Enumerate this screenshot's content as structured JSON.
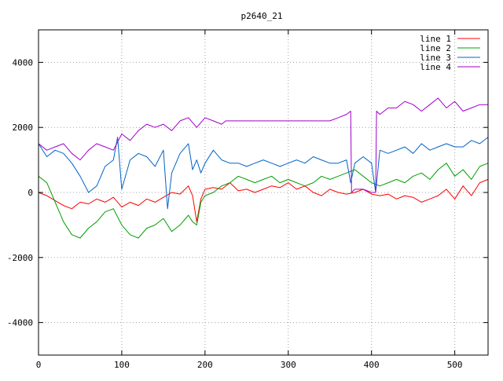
{
  "chart_data": {
    "type": "line",
    "title": "p2640_21",
    "xlabel": "",
    "ylabel": "",
    "xlim": [
      0,
      540
    ],
    "ylim": [
      -5000,
      5000
    ],
    "xticks": [
      0,
      100,
      200,
      300,
      400,
      500
    ],
    "yticks": [
      -4000,
      -2000,
      0,
      2000,
      4000
    ],
    "xtick_labels": [
      "0",
      "100",
      "200",
      "300",
      "400",
      "500"
    ],
    "ytick_labels": [
      "-4000",
      "-2000",
      "0",
      "2000",
      "4000"
    ],
    "grid": true,
    "legend_position": "top-right",
    "series": [
      {
        "name": "line 1",
        "color": "#ff0000",
        "x": [
          0,
          10,
          20,
          30,
          40,
          50,
          60,
          70,
          80,
          90,
          100,
          110,
          120,
          130,
          140,
          150,
          160,
          170,
          180,
          185,
          190,
          195,
          200,
          210,
          220,
          230,
          240,
          250,
          260,
          270,
          280,
          290,
          300,
          310,
          320,
          330,
          340,
          350,
          360,
          370,
          380,
          390,
          400,
          410,
          420,
          430,
          440,
          450,
          460,
          470,
          480,
          490,
          500,
          510,
          520,
          530,
          540
        ],
        "y": [
          0,
          -100,
          -250,
          -400,
          -500,
          -300,
          -350,
          -200,
          -300,
          -150,
          -450,
          -300,
          -400,
          -200,
          -300,
          -150,
          0,
          -50,
          200,
          -100,
          -900,
          -200,
          100,
          150,
          100,
          300,
          50,
          100,
          0,
          100,
          200,
          150,
          300,
          100,
          200,
          0,
          -100,
          100,
          0,
          -50,
          0,
          100,
          -50,
          -100,
          -50,
          -200,
          -100,
          -150,
          -300,
          -200,
          -100,
          100,
          -200,
          200,
          -100,
          300,
          400
        ]
      },
      {
        "name": "line 2",
        "color": "#00a000",
        "x": [
          0,
          10,
          20,
          30,
          40,
          50,
          60,
          70,
          80,
          90,
          100,
          110,
          120,
          130,
          140,
          150,
          160,
          170,
          180,
          185,
          190,
          195,
          200,
          210,
          220,
          230,
          240,
          250,
          260,
          270,
          280,
          290,
          300,
          310,
          320,
          330,
          340,
          350,
          360,
          370,
          380,
          390,
          400,
          410,
          420,
          430,
          440,
          450,
          460,
          470,
          480,
          490,
          500,
          510,
          520,
          530,
          540
        ],
        "y": [
          500,
          300,
          -300,
          -900,
          -1300,
          -1400,
          -1100,
          -900,
          -600,
          -500,
          -1000,
          -1300,
          -1400,
          -1100,
          -1000,
          -800,
          -1200,
          -1000,
          -700,
          -900,
          -1000,
          -300,
          -100,
          0,
          200,
          300,
          500,
          400,
          300,
          400,
          500,
          300,
          400,
          300,
          200,
          300,
          500,
          400,
          500,
          600,
          700,
          500,
          300,
          200,
          300,
          400,
          300,
          500,
          600,
          400,
          700,
          900,
          500,
          700,
          400,
          800,
          900
        ]
      },
      {
        "name": "line 3",
        "color": "#0064c8",
        "x": [
          0,
          10,
          20,
          30,
          40,
          50,
          60,
          70,
          80,
          90,
          95,
          100,
          110,
          120,
          130,
          140,
          150,
          155,
          160,
          170,
          180,
          185,
          190,
          195,
          200,
          210,
          220,
          230,
          240,
          250,
          260,
          270,
          280,
          290,
          300,
          310,
          320,
          330,
          340,
          350,
          360,
          370,
          375,
          380,
          390,
          400,
          405,
          410,
          420,
          430,
          440,
          450,
          460,
          470,
          480,
          490,
          500,
          510,
          520,
          530,
          540
        ],
        "y": [
          1500,
          1100,
          1300,
          1200,
          900,
          500,
          0,
          200,
          800,
          1000,
          1700,
          100,
          1000,
          1200,
          1100,
          800,
          1300,
          -500,
          600,
          1200,
          1500,
          700,
          1000,
          600,
          900,
          1300,
          1000,
          900,
          900,
          800,
          900,
          1000,
          900,
          800,
          900,
          1000,
          900,
          1100,
          1000,
          900,
          900,
          1000,
          300,
          900,
          1100,
          900,
          0,
          1300,
          1200,
          1300,
          1400,
          1200,
          1500,
          1300,
          1400,
          1500,
          1400,
          1400,
          1600,
          1500,
          1700
        ]
      },
      {
        "name": "line 4",
        "color": "#a000c8",
        "x": [
          0,
          10,
          20,
          30,
          40,
          50,
          60,
          70,
          80,
          90,
          100,
          110,
          120,
          130,
          140,
          150,
          160,
          170,
          180,
          190,
          200,
          210,
          220,
          225,
          230,
          300,
          350,
          360,
          370,
          375,
          376,
          380,
          390,
          400,
          405,
          406,
          410,
          420,
          430,
          440,
          450,
          460,
          470,
          480,
          490,
          500,
          510,
          520,
          530,
          540
        ],
        "y": [
          1500,
          1300,
          1400,
          1500,
          1200,
          1000,
          1300,
          1500,
          1400,
          1300,
          1800,
          1600,
          1900,
          2100,
          2000,
          2100,
          1900,
          2200,
          2300,
          2000,
          2300,
          2200,
          2100,
          2200,
          2200,
          2200,
          2200,
          2300,
          2400,
          2500,
          0,
          100,
          100,
          0,
          0,
          2500,
          2400,
          2600,
          2600,
          2800,
          2700,
          2500,
          2700,
          2900,
          2600,
          2800,
          2500,
          2600,
          2700,
          2700
        ]
      }
    ]
  }
}
